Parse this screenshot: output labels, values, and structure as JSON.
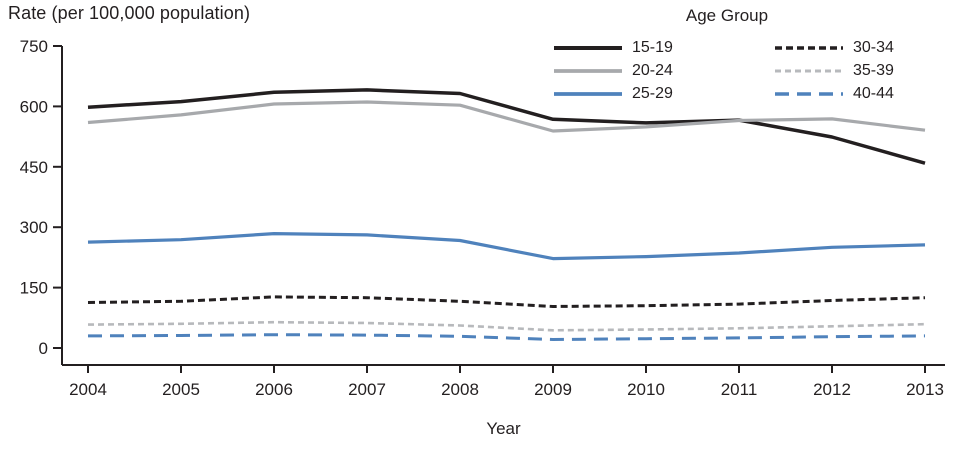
{
  "chart_data": {
    "type": "line",
    "title": "Rate (per 100,000 population)",
    "xlabel": "Year",
    "legend_title": "Age Group",
    "x": [
      2004,
      2005,
      2006,
      2007,
      2008,
      2009,
      2010,
      2011,
      2012,
      2013
    ],
    "ylim": [
      0,
      750
    ],
    "y_ticks": [
      0,
      150,
      300,
      450,
      600,
      750
    ],
    "grid": "off",
    "legend_position": "top-right, two columns",
    "axis_color": "#231f20",
    "series": [
      {
        "name": "15-19",
        "color": "#231f20",
        "dash": "none",
        "width": 3.5,
        "values": [
          598,
          612,
          635,
          641,
          632,
          568,
          559,
          566,
          524,
          459
        ]
      },
      {
        "name": "20-24",
        "color": "#a7a9ac",
        "dash": "none",
        "width": 3.2,
        "values": [
          560,
          579,
          606,
          611,
          603,
          539,
          549,
          565,
          569,
          541
        ]
      },
      {
        "name": "25-29",
        "color": "#4f82bc",
        "dash": "none",
        "width": 3.2,
        "values": [
          263,
          269,
          284,
          281,
          267,
          222,
          227,
          236,
          250,
          256
        ]
      },
      {
        "name": "30-34",
        "color": "#231f20",
        "dash": "7 4",
        "width": 3,
        "values": [
          113,
          116,
          127,
          125,
          116,
          103,
          105,
          109,
          118,
          125
        ]
      },
      {
        "name": "35-39",
        "color": "#b7b9bc",
        "dash": "6 4",
        "width": 2.6,
        "values": [
          58,
          60,
          64,
          62,
          56,
          44,
          46,
          49,
          54,
          59
        ]
      },
      {
        "name": "40-44",
        "color": "#4f82bc",
        "dash": "14 8",
        "width": 3,
        "values": [
          30,
          31,
          33,
          32,
          29,
          21,
          23,
          25,
          28,
          30
        ]
      }
    ]
  }
}
